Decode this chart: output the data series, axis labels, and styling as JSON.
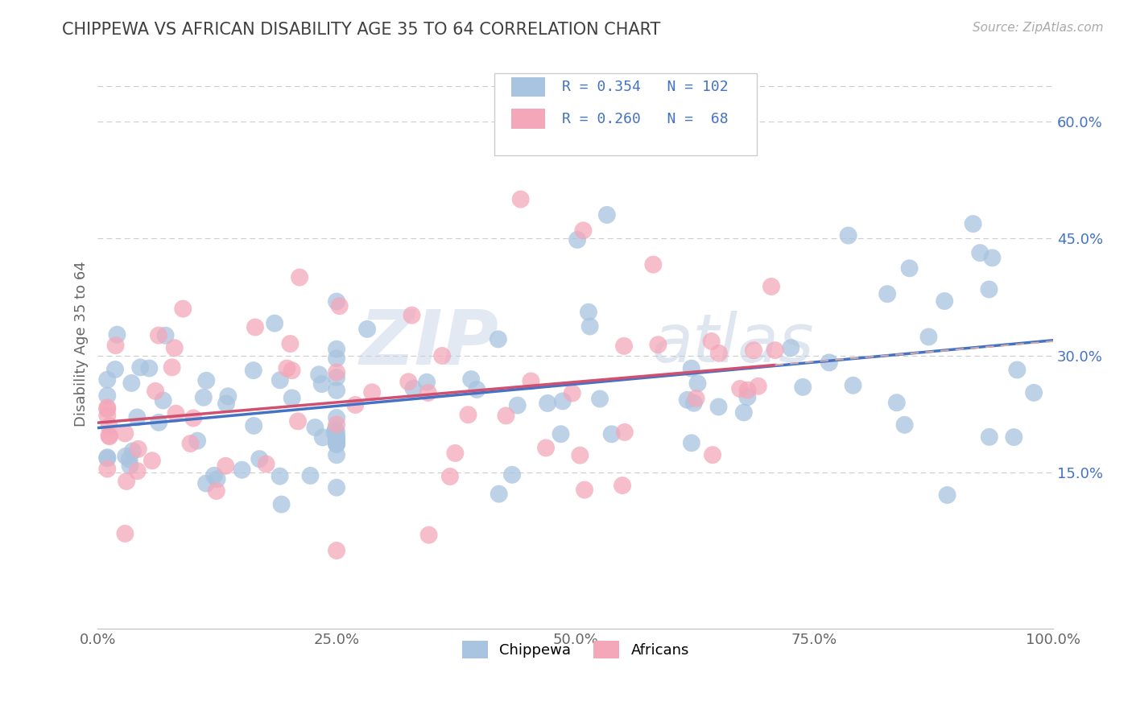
{
  "title": "CHIPPEWA VS AFRICAN DISABILITY AGE 35 TO 64 CORRELATION CHART",
  "source_text": "Source: ZipAtlas.com",
  "ylabel": "Disability Age 35 to 64",
  "xlim": [
    0.0,
    1.0
  ],
  "ylim": [
    -0.05,
    0.68
  ],
  "yticks": [
    0.0,
    0.15,
    0.3,
    0.45,
    0.6
  ],
  "ytick_labels": [
    "",
    "15.0%",
    "30.0%",
    "45.0%",
    "60.0%"
  ],
  "xticks": [
    0.0,
    0.25,
    0.5,
    0.75,
    1.0
  ],
  "xtick_labels": [
    "0.0%",
    "25.0%",
    "50.0%",
    "75.0%",
    "100.0%"
  ],
  "chippewa_color": "#a8c4e0",
  "africans_color": "#f4a7b9",
  "chippewa_R": 0.354,
  "chippewa_N": 102,
  "africans_R": 0.26,
  "africans_N": 68,
  "trend_blue": "#4472c4",
  "trend_pink": "#d05070",
  "background_color": "#ffffff",
  "grid_color": "#cccccc",
  "title_color": "#404040",
  "watermark_zip": "ZIP",
  "watermark_atlas": "atlas",
  "legend_label_blue": "Chippewa",
  "legend_label_pink": "Africans"
}
